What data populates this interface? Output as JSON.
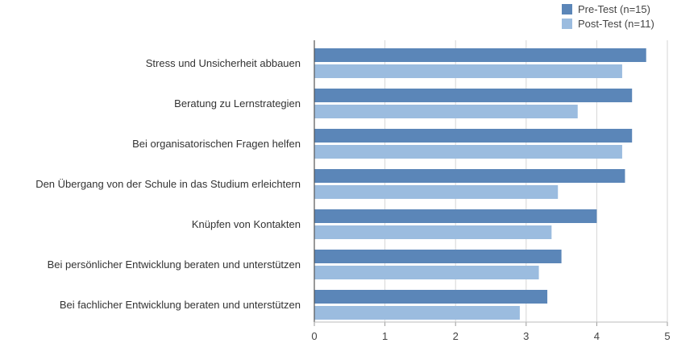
{
  "chart_data": {
    "type": "bar",
    "orientation": "horizontal",
    "categories": [
      "Stress und Unsicherheit abbauen",
      "Beratung zu Lernstrategien",
      "Bei organisatorischen Fragen helfen",
      "Den Übergang von der Schule in das Studium erleichtern",
      "Knüpfen von Kontakten",
      "Bei persönlicher Entwicklung beraten und unterstützen",
      "Bei fachlicher Entwicklung beraten und unterstützen"
    ],
    "series": [
      {
        "name": "Pre-Test (n=15)",
        "color": "#5b86b8",
        "values": [
          4.7,
          4.5,
          4.5,
          4.4,
          4.0,
          3.5,
          3.3
        ]
      },
      {
        "name": "Post-Test (n=11)",
        "color": "#9bbcdf",
        "values": [
          4.36,
          3.73,
          4.36,
          3.45,
          3.36,
          3.18,
          2.91
        ]
      }
    ],
    "xlim": [
      0,
      5
    ],
    "xticks": [
      "0",
      "1",
      "2",
      "3",
      "4",
      "5"
    ],
    "grid": "vertical",
    "legend_position": "top-right"
  }
}
